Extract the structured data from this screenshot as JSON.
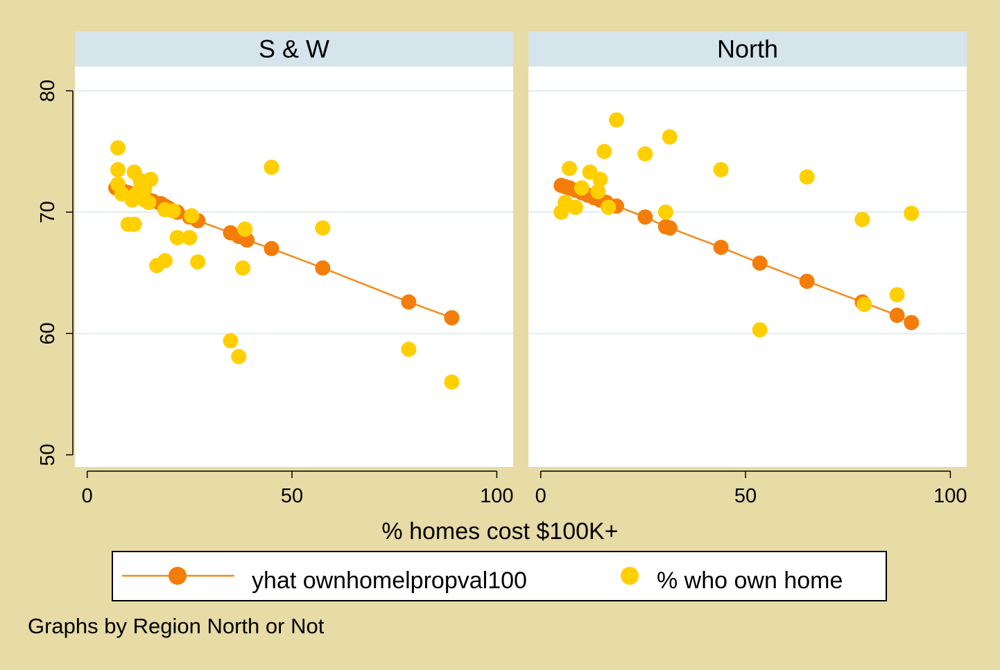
{
  "colors": {
    "background": "#e7dba6",
    "plot_background": "#ffffff",
    "strip_background": "#d6e4eb",
    "fit_line": "#f28c1c",
    "fit_marker": "#f47d0a",
    "observed_marker": "#ffcf00",
    "gridline": "#e3ecef"
  },
  "chart_data": {
    "type": "scatter",
    "xlabel": "% homes cost $100K+",
    "ylabel": "",
    "xlim": [
      -3,
      104
    ],
    "ylim": [
      49,
      82
    ],
    "xticks": [
      "0",
      "50",
      "100"
    ],
    "xtick_values": [
      0,
      50,
      100
    ],
    "yticks": [
      "50",
      "60",
      "70",
      "80"
    ],
    "ytick_values": [
      50,
      60,
      70,
      80
    ],
    "grid": "horizontal",
    "legend": {
      "position": "bottom",
      "entries": [
        {
          "label": "yhat ownhomelpropval100",
          "marker": "fit"
        },
        {
          "label": "% who own home",
          "marker": "observed"
        }
      ]
    },
    "note": "Graphs by Region North or Not",
    "panels": [
      {
        "title": "S & W",
        "series": [
          {
            "name": "yhat ownhomelpropval100",
            "style": "line+marker",
            "x": [
              7,
              8,
              9,
              10,
              11,
              12,
              13,
              14,
              15,
              16,
              18,
              19,
              20,
              22,
              25,
              27,
              35,
              37,
              39,
              45,
              57.5,
              78.5,
              89
            ],
            "y": [
              72.0,
              71.9,
              71.7,
              71.6,
              71.5,
              71.4,
              71.3,
              71.2,
              71.0,
              70.9,
              70.7,
              70.5,
              70.3,
              70.0,
              69.6,
              69.3,
              68.3,
              68.0,
              67.7,
              67.0,
              65.4,
              62.6,
              61.3
            ]
          },
          {
            "name": "% who own home",
            "style": "marker",
            "x": [
              7.5,
              7.5,
              7.5,
              8.5,
              10,
              11,
              11.5,
              11.5,
              12,
              13,
              13,
              14,
              14,
              15,
              15.5,
              17,
              19,
              19,
              21,
              22,
              25,
              25.5,
              27,
              35,
              37,
              38,
              38.5,
              45,
              57.5,
              78.5,
              89
            ],
            "y": [
              75.3,
              73.5,
              72.3,
              71.5,
              69.0,
              71.0,
              73.3,
              69.0,
              71.5,
              72.6,
              71.9,
              71.9,
              71.0,
              70.8,
              72.7,
              65.6,
              66.0,
              70.2,
              70.1,
              67.9,
              67.9,
              69.7,
              65.9,
              59.4,
              58.1,
              65.4,
              68.6,
              73.7,
              68.7,
              58.7,
              56.0
            ]
          }
        ]
      },
      {
        "title": "North",
        "series": [
          {
            "name": "yhat ownhomelpropval100",
            "style": "line+marker",
            "x": [
              5,
              6,
              7,
              8.5,
              10,
              11.5,
              13,
              14.5,
              16,
              18.5,
              25.5,
              30.5,
              31.5,
              44,
              53.5,
              65,
              78.5,
              87,
              90.5
            ],
            "y": [
              72.2,
              72.1,
              72.0,
              71.8,
              71.6,
              71.4,
              71.2,
              71.0,
              70.8,
              70.5,
              69.6,
              68.8,
              68.7,
              67.1,
              65.8,
              64.3,
              62.6,
              61.5,
              60.9
            ]
          },
          {
            "name": "% who own home",
            "style": "marker",
            "x": [
              5,
              6,
              7,
              8.5,
              10,
              12,
              14,
              14.5,
              15.5,
              16.5,
              18.5,
              25.5,
              30.5,
              31.5,
              44,
              53.5,
              65,
              78.5,
              79,
              87,
              90.5
            ],
            "y": [
              70.0,
              70.8,
              73.6,
              70.4,
              72.0,
              73.3,
              71.7,
              72.7,
              75.0,
              70.4,
              77.6,
              74.8,
              70.0,
              76.2,
              73.5,
              60.3,
              72.9,
              69.4,
              62.4,
              63.2,
              69.9
            ]
          }
        ]
      }
    ]
  }
}
